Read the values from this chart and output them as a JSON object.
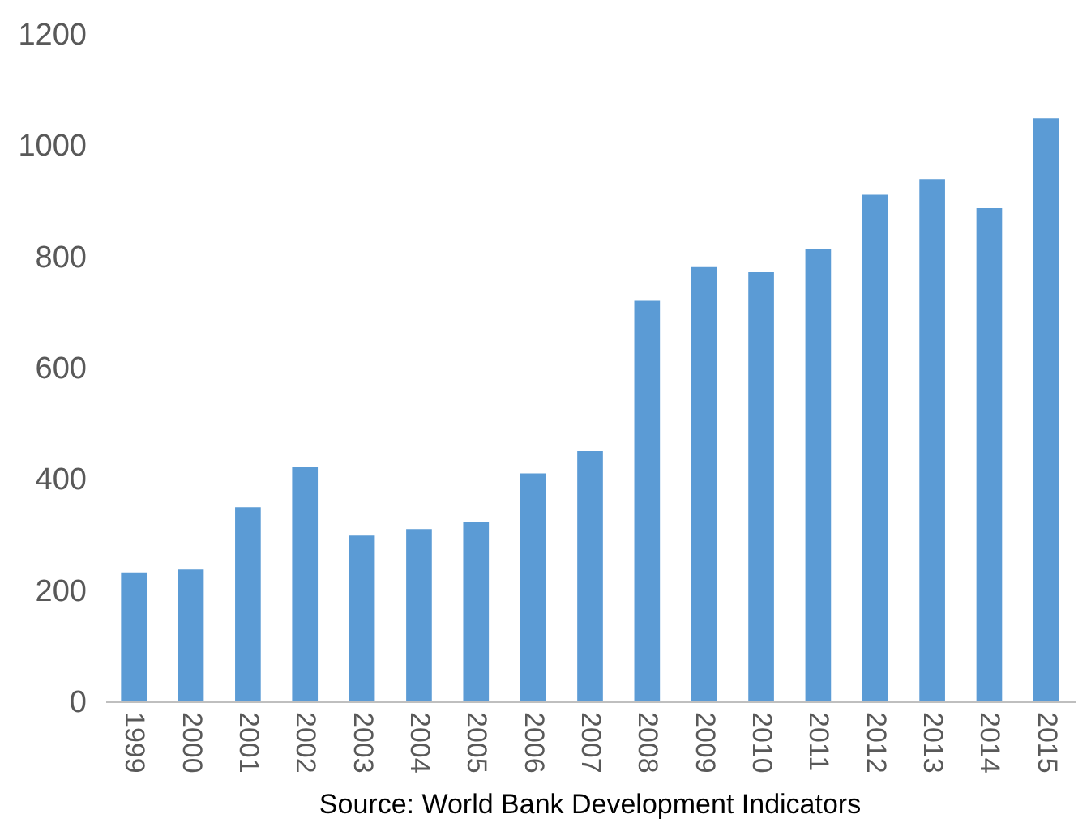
{
  "chart_data": {
    "type": "bar",
    "categories": [
      "1999",
      "2000",
      "2001",
      "2002",
      "2003",
      "2004",
      "2005",
      "2006",
      "2007",
      "2008",
      "2009",
      "2010",
      "2011",
      "2012",
      "2013",
      "2014",
      "2015"
    ],
    "values": [
      232,
      237,
      349,
      422,
      298,
      310,
      322,
      410,
      450,
      720,
      781,
      772,
      814,
      911,
      939,
      887,
      1048
    ],
    "color": "#5b9bd5",
    "ylim": [
      0,
      1200
    ],
    "yticks": [
      0,
      200,
      400,
      600,
      800,
      1000,
      1200
    ],
    "grid": false,
    "annotations": [
      "Source: World Bank Development Indicators"
    ]
  }
}
